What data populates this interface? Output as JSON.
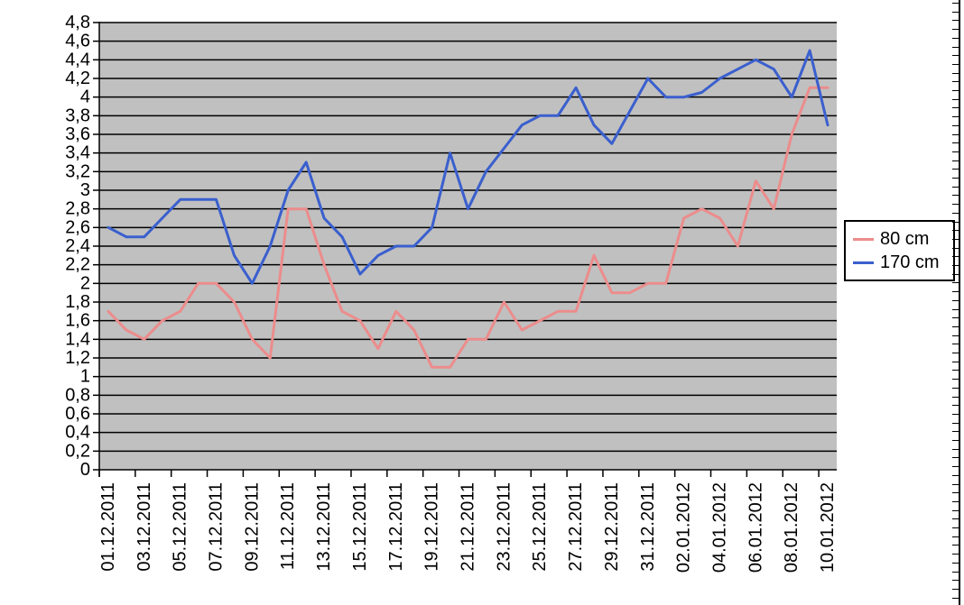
{
  "chart_data": {
    "type": "line",
    "title": "",
    "xlabel": "",
    "ylabel": "",
    "ylim": [
      0,
      4.8
    ],
    "ystep": 0.2,
    "grid": true,
    "plot_bg_color": "#c0c0c0",
    "grid_color": "#000000",
    "decimal_style": "comma",
    "y_tick_labels": [
      "0",
      "0,2",
      "0,4",
      "0,6",
      "0,8",
      "1",
      "1,2",
      "1,4",
      "1,6",
      "1,8",
      "2",
      "2,2",
      "2,4",
      "2,6",
      "2,8",
      "3",
      "3,2",
      "3,4",
      "3,6",
      "3,8",
      "4",
      "4,2",
      "4,4",
      "4,6",
      "4,8"
    ],
    "x_tick_labels": [
      "01.12.2011",
      "03.12.2011",
      "05.12.2011",
      "07.12.2011",
      "09.12.2011",
      "11.12.2011",
      "13.12.2011",
      "15.12.2011",
      "17.12.2011",
      "19.12.2011",
      "21.12.2011",
      "23.12.2011",
      "25.12.2011",
      "27.12.2011",
      "29.12.2011",
      "31.12.2011",
      "02.01.2012",
      "04.01.2012",
      "06.01.2012",
      "08.01.2012",
      "10.01.2012"
    ],
    "n_points": 41,
    "legend_position": "right",
    "series": [
      {
        "name": "80 cm",
        "color": "#ec8c8c",
        "values": [
          1.7,
          1.5,
          1.4,
          1.6,
          1.7,
          2.0,
          2.0,
          1.8,
          1.4,
          1.2,
          2.8,
          2.8,
          2.2,
          1.7,
          1.6,
          1.3,
          1.7,
          1.5,
          1.1,
          1.1,
          1.4,
          1.4,
          1.8,
          1.5,
          1.6,
          1.7,
          1.7,
          2.3,
          1.9,
          1.9,
          2.0,
          2.0,
          2.7,
          2.8,
          2.7,
          2.4,
          3.1,
          2.8,
          3.6,
          4.1,
          4.1
        ]
      },
      {
        "name": "170 cm",
        "color": "#3a5fce",
        "values": [
          2.6,
          2.5,
          2.5,
          2.7,
          2.9,
          2.9,
          2.9,
          2.3,
          2.0,
          2.4,
          3.0,
          3.3,
          2.7,
          2.5,
          2.1,
          2.3,
          2.4,
          2.4,
          2.6,
          3.4,
          2.8,
          3.2,
          3.45,
          3.7,
          3.8,
          3.8,
          4.1,
          3.7,
          3.5,
          3.85,
          4.2,
          4.0,
          4.0,
          4.05,
          4.2,
          4.3,
          4.4,
          4.3,
          4.0,
          4.5,
          3.7
        ]
      }
    ]
  }
}
